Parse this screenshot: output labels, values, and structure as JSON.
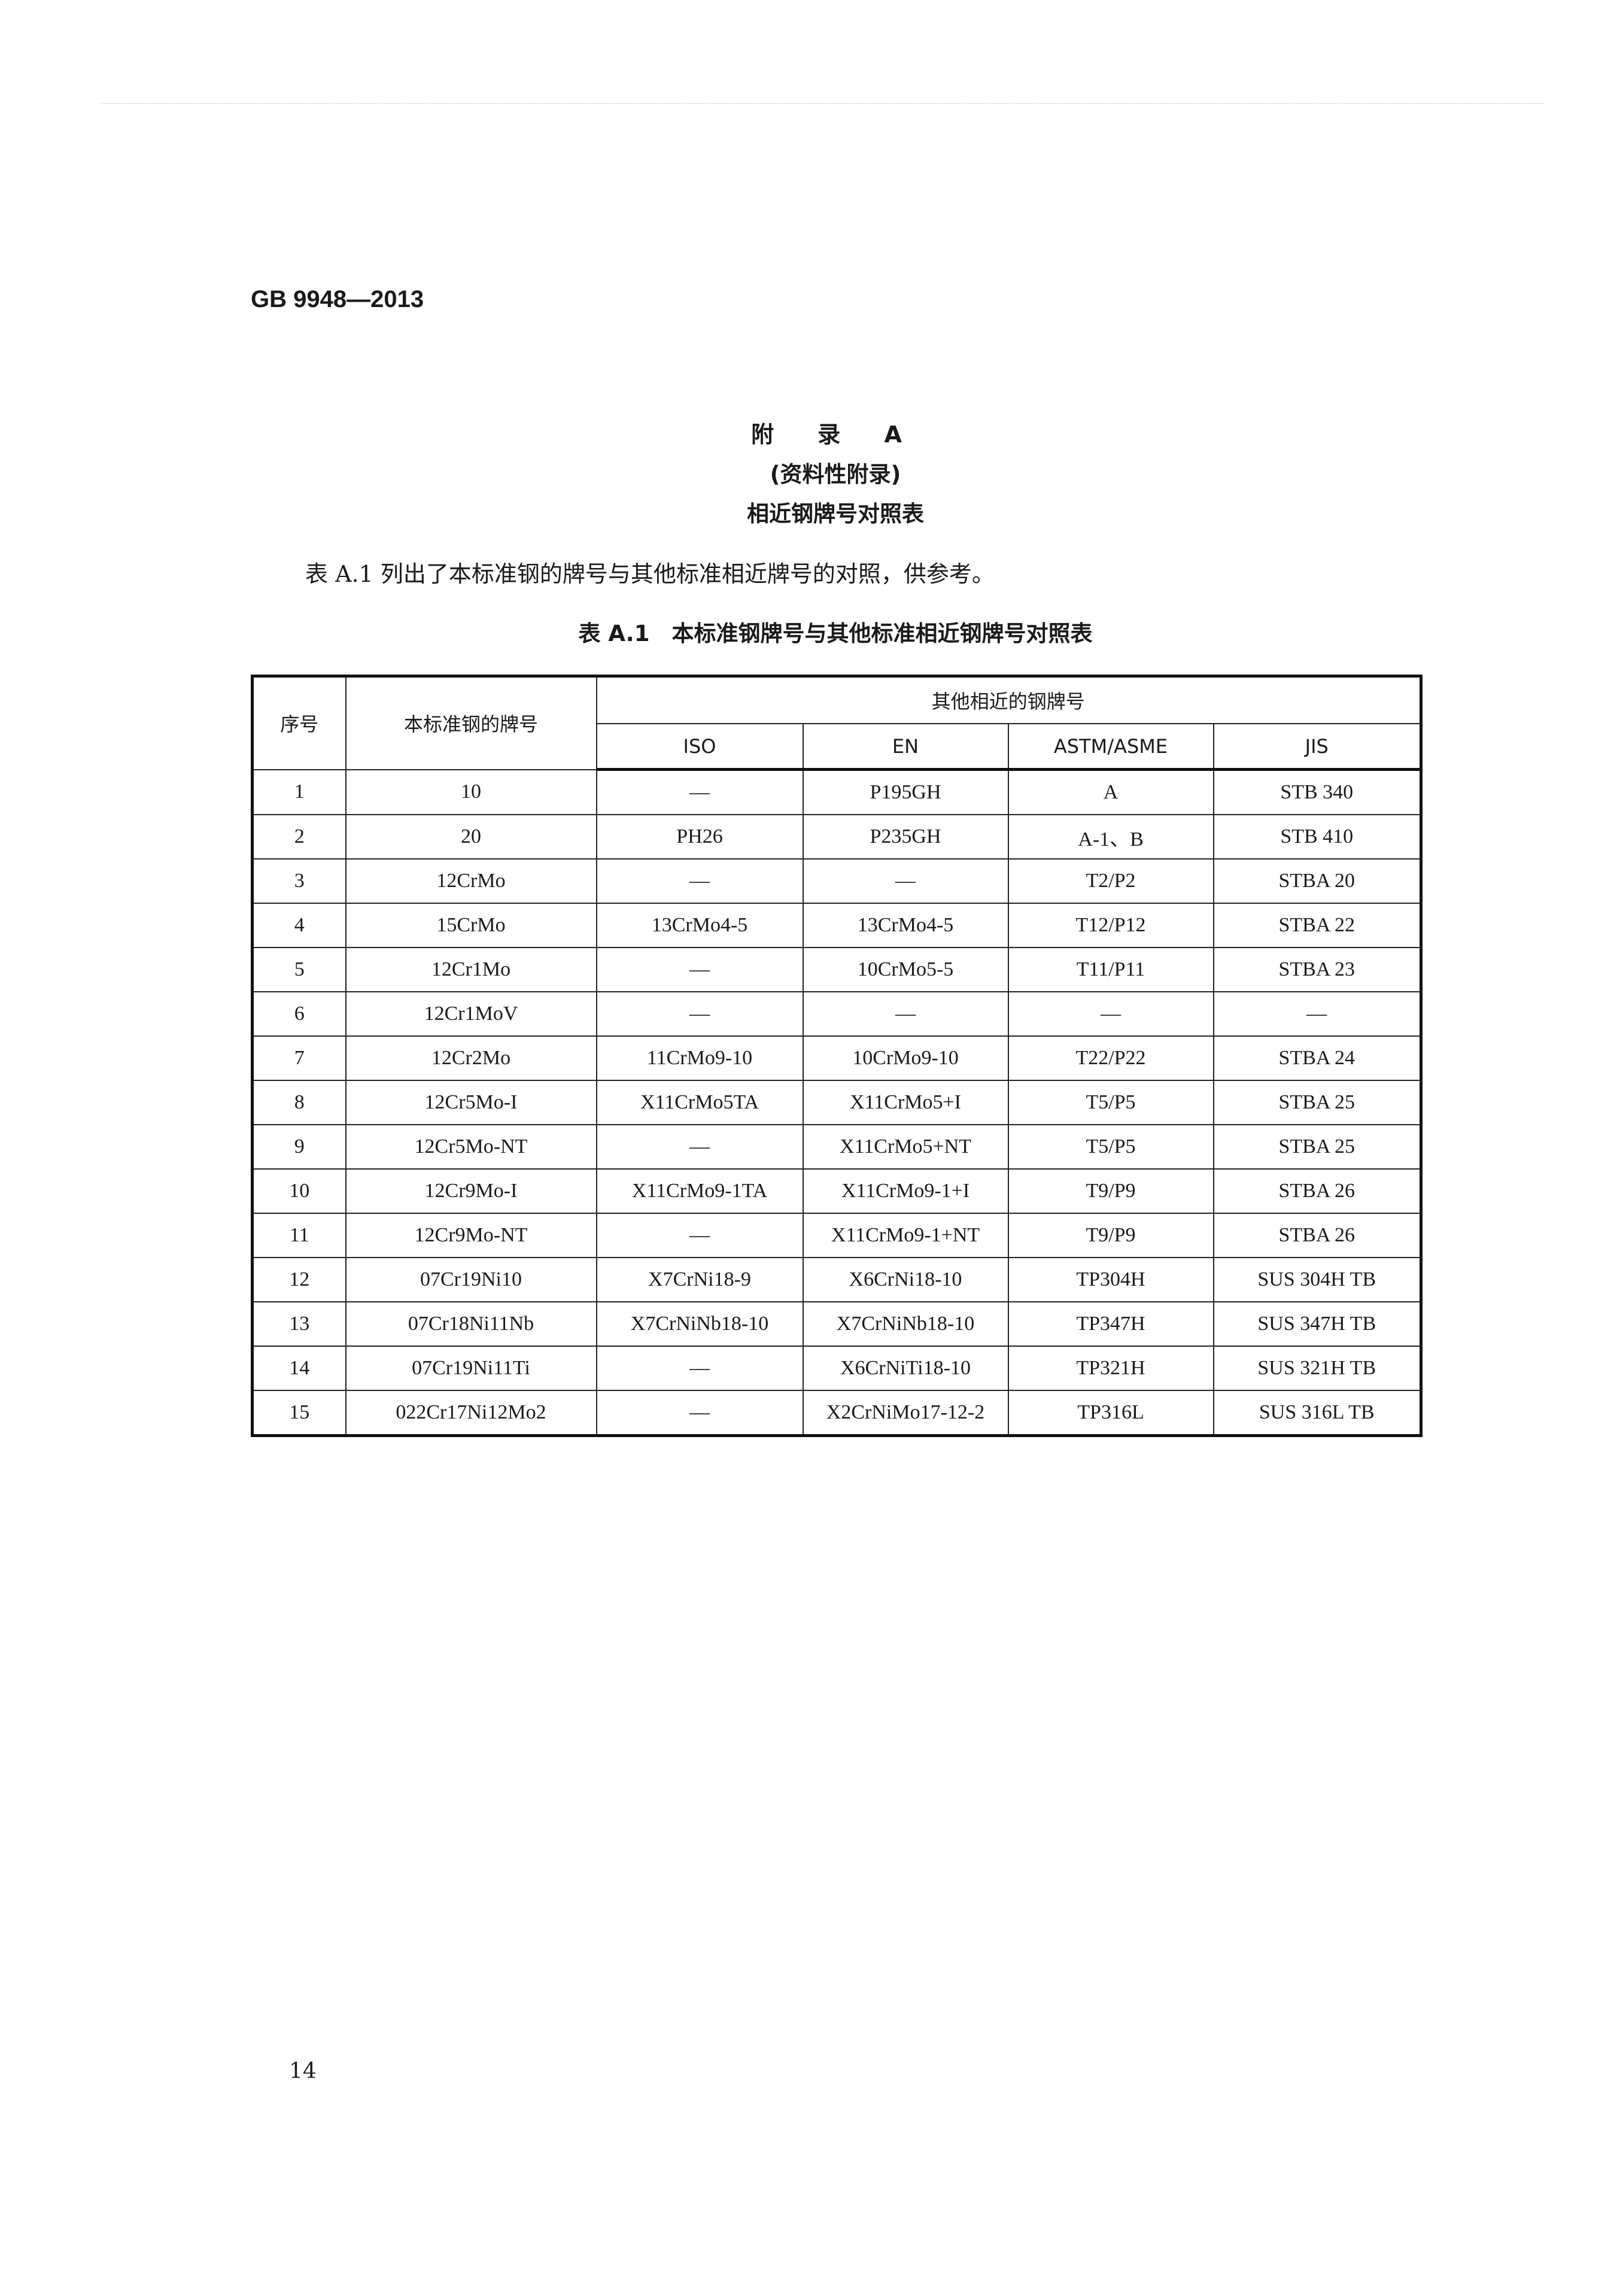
{
  "header": {
    "doc_number": "GB 9948—2013"
  },
  "appendix": {
    "title": "附 录 A",
    "subtitle": "(资料性附录)",
    "heading": "相近钢牌号对照表"
  },
  "intro": "表 A.1 列出了本标准钢的牌号与其他标准相近牌号的对照，供参考。",
  "table": {
    "caption": "表 A.1　本标准钢牌号与其他标准相近钢牌号对照表",
    "col_no": "序号",
    "col_grade": "本标准钢的牌号",
    "group": "其他相近的钢牌号",
    "sub_cols": [
      "ISO",
      "EN",
      "ASTM/ASME",
      "JIS"
    ],
    "rows": [
      [
        "1",
        "10",
        "—",
        "P195GH",
        "A",
        "STB 340"
      ],
      [
        "2",
        "20",
        "PH26",
        "P235GH",
        "A-1、B",
        "STB 410"
      ],
      [
        "3",
        "12CrMo",
        "—",
        "—",
        "T2/P2",
        "STBA 20"
      ],
      [
        "4",
        "15CrMo",
        "13CrMo4-5",
        "13CrMo4-5",
        "T12/P12",
        "STBA 22"
      ],
      [
        "5",
        "12Cr1Mo",
        "—",
        "10CrMo5-5",
        "T11/P11",
        "STBA 23"
      ],
      [
        "6",
        "12Cr1MoV",
        "—",
        "—",
        "—",
        "—"
      ],
      [
        "7",
        "12Cr2Mo",
        "11CrMo9-10",
        "10CrMo9-10",
        "T22/P22",
        "STBA 24"
      ],
      [
        "8",
        "12Cr5Mo-I",
        "X11CrMo5TA",
        "X11CrMo5+I",
        "T5/P5",
        "STBA 25"
      ],
      [
        "9",
        "12Cr5Mo-NT",
        "—",
        "X11CrMo5+NT",
        "T5/P5",
        "STBA 25"
      ],
      [
        "10",
        "12Cr9Mo-I",
        "X11CrMo9-1TA",
        "X11CrMo9-1+I",
        "T9/P9",
        "STBA 26"
      ],
      [
        "11",
        "12Cr9Mo-NT",
        "—",
        "X11CrMo9-1+NT",
        "T9/P9",
        "STBA 26"
      ],
      [
        "12",
        "07Cr19Ni10",
        "X7CrNi18-9",
        "X6CrNi18-10",
        "TP304H",
        "SUS 304H TB"
      ],
      [
        "13",
        "07Cr18Ni11Nb",
        "X7CrNiNb18-10",
        "X7CrNiNb18-10",
        "TP347H",
        "SUS 347H TB"
      ],
      [
        "14",
        "07Cr19Ni11Ti",
        "—",
        "X6CrNiTi18-10",
        "TP321H",
        "SUS 321H TB"
      ],
      [
        "15",
        "022Cr17Ni12Mo2",
        "—",
        "X2CrNiMo17-12-2",
        "TP316L",
        "SUS 316L TB"
      ]
    ]
  },
  "footer": {
    "page_number": "14"
  }
}
